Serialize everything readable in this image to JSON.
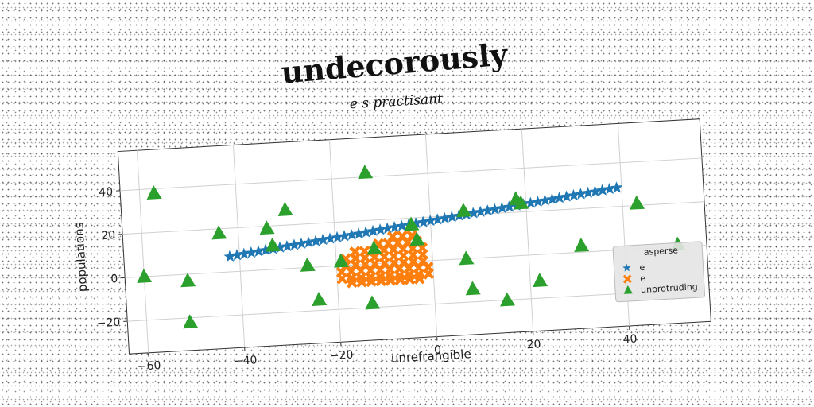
{
  "title": "undecorously",
  "chart_data": {
    "type": "scatter",
    "subtitle": "e s practisant",
    "xlabel": "unrefrangible",
    "ylabel": "populations",
    "xlim": [
      -64,
      57
    ],
    "ylim": [
      -35,
      58
    ],
    "xticks": [
      -60,
      -40,
      -20,
      0,
      20,
      40
    ],
    "yticks": [
      -20,
      0,
      20,
      40
    ],
    "grid": true,
    "legend": {
      "title": "asperse",
      "placement": "lower-right"
    },
    "series": [
      {
        "name": "e",
        "marker": "star",
        "color": "#1f77b4",
        "x": [
          -42,
          -40.5,
          -39,
          -37.5,
          -36,
          -34.5,
          -33,
          -31.5,
          -30,
          -28.5,
          -27,
          -25.5,
          -24,
          -22.5,
          -21,
          -19.5,
          -18,
          -16.5,
          -15,
          -13.5,
          -12,
          -10.5,
          -9,
          -7.5,
          -6,
          -4.5,
          -3,
          -1.5,
          0,
          1.5,
          3,
          4.5,
          6,
          7.5,
          9,
          10.5,
          12,
          13.5,
          15,
          16.5,
          18,
          19.5,
          21,
          22.5,
          24,
          25.5,
          27,
          28.5,
          30,
          31.5,
          33,
          34.5,
          36,
          37.5,
          39
        ],
        "y": [
          7,
          7.4,
          7.8,
          8.2,
          8.6,
          9,
          9.4,
          9.8,
          10.2,
          10.6,
          11,
          11.4,
          11.8,
          12.2,
          12.6,
          13,
          13.4,
          13.8,
          14.2,
          14.6,
          15,
          15.4,
          15.8,
          16.2,
          16.6,
          17,
          17.4,
          17.8,
          18.2,
          18.6,
          19,
          19.4,
          19.8,
          20.2,
          20.6,
          21,
          21.4,
          21.8,
          22.2,
          22.6,
          23,
          23.4,
          23.8,
          24.2,
          24.6,
          25,
          25.4,
          25.8,
          26.2,
          26.6,
          27,
          27.4,
          27.8,
          28.2,
          28.6
        ]
      },
      {
        "name": "e",
        "marker": "x",
        "color": "#ff7f0e",
        "x": [
          -19,
          -17,
          -15,
          -13,
          -11,
          -9,
          -7,
          -5,
          -3,
          -1,
          -18,
          -16,
          -14,
          -12,
          -10,
          -8,
          -6,
          -4,
          -2,
          -19,
          -17,
          -15,
          -13,
          -11,
          -9,
          -7,
          -5,
          -3,
          -1,
          -18,
          -16,
          -14,
          -12,
          -10,
          -8,
          -6,
          -4,
          -2,
          -17,
          -15,
          -13,
          -11,
          -9,
          -7,
          -5,
          -3,
          -16,
          -14,
          -12,
          -10,
          -8,
          -6,
          -4,
          -2,
          -11,
          -9,
          -7,
          -5,
          -3,
          -8,
          -6,
          -4
        ],
        "y": [
          -3,
          -3,
          -3,
          -3,
          -3,
          -3,
          -3,
          -3,
          -3,
          -3,
          0,
          0,
          0,
          0,
          0,
          0,
          0,
          0,
          0,
          -6,
          -6,
          -6,
          -6,
          -6,
          -6,
          -6,
          -6,
          -6,
          -6,
          3,
          3,
          3,
          3,
          3,
          3,
          3,
          3,
          3,
          -8,
          -8,
          -8,
          -8,
          -8,
          -8,
          -8,
          -8,
          6,
          6,
          6,
          6,
          6,
          6,
          6,
          6,
          9,
          9,
          9,
          9,
          9,
          12,
          12,
          12
        ]
      },
      {
        "name": "unprotruding",
        "marker": "triangle",
        "color": "#2ca02c",
        "x": [
          -57,
          -60,
          -51,
          -51,
          -44,
          -34,
          -30,
          -33,
          -26,
          -24,
          -19,
          -13,
          -12,
          -13,
          -4,
          -3,
          7,
          7,
          8,
          15,
          18,
          19,
          22,
          31,
          43,
          51
        ],
        "y": [
          38,
          0,
          -3,
          -22,
          18,
          19,
          27,
          11,
          1,
          -15,
          2,
          42,
          7,
          -18,
          17,
          10,
          22,
          0,
          -14,
          -20,
          26,
          24,
          -12,
          3,
          21,
          1
        ]
      }
    ]
  }
}
